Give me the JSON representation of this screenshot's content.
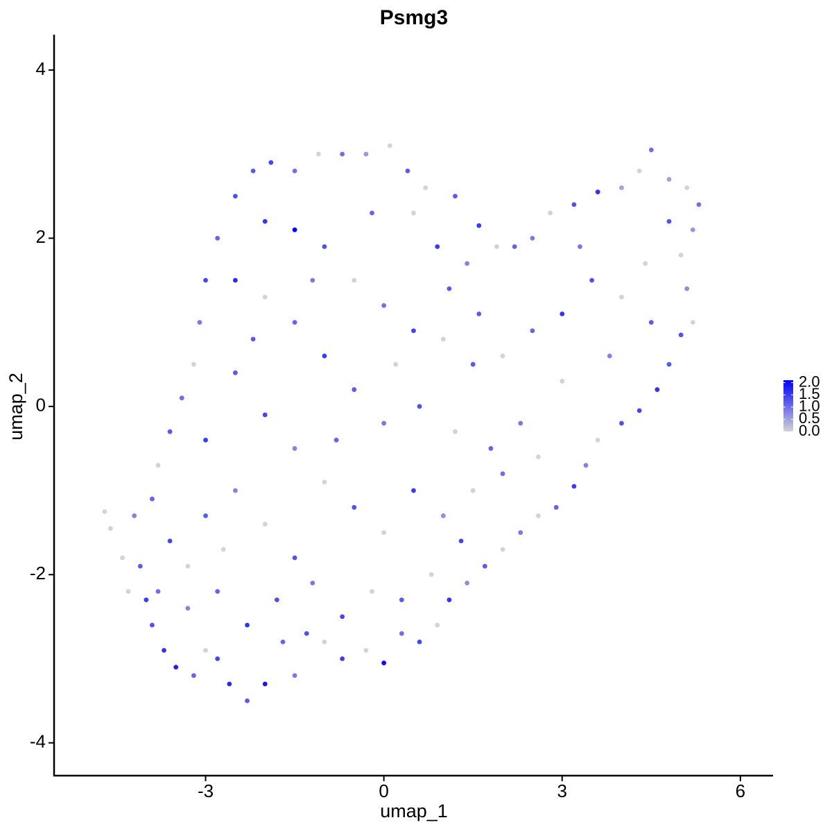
{
  "chart_data": {
    "type": "scatter",
    "title": "Psmg3",
    "xlabel": "umap_1",
    "ylabel": "umap_2",
    "x": [
      -4.7,
      -4.6,
      -4.4,
      -4.1,
      -4.0,
      -3.9,
      -3.7,
      -3.5,
      -3.3,
      -3.2,
      -3.0,
      -2.8,
      -2.6,
      -2.3,
      -2.0,
      -1.5,
      -1.3,
      -1.0,
      -0.7,
      -0.3,
      0.0,
      0.3,
      0.6,
      0.9,
      1.1,
      1.4,
      1.7,
      2.0,
      2.3,
      2.6,
      2.9,
      3.2,
      3.4,
      3.6,
      4.0,
      4.3,
      4.6,
      4.8,
      5.0,
      5.2,
      5.1,
      5.0,
      5.2,
      5.3,
      5.1,
      4.8,
      4.5,
      4.3,
      4.0,
      3.6,
      3.2,
      2.8,
      2.5,
      2.2,
      1.9,
      1.6,
      1.4,
      1.1,
      0.9,
      0.7,
      0.4,
      0.1,
      -0.3,
      -0.7,
      -1.1,
      -1.5,
      -1.9,
      -2.2,
      -2.5,
      -2.8,
      -3.0,
      -3.1,
      -3.2,
      -3.4,
      -3.6,
      -3.8,
      -3.9,
      -4.2,
      -2.0,
      -1.5,
      -1.0,
      -0.5,
      0.0,
      0.5,
      1.0,
      1.5,
      2.0,
      2.5,
      3.0,
      3.5,
      4.0,
      4.5,
      3.8,
      3.0,
      2.3,
      1.8,
      1.2,
      0.6,
      0.0,
      -0.5,
      -1.0,
      -1.5,
      -2.0,
      -2.5,
      -2.5,
      -2.0,
      -1.5,
      -1.0,
      -0.5,
      0.0,
      0.5,
      1.0,
      1.5,
      2.0,
      2.6,
      1.3,
      0.8,
      0.3,
      -0.2,
      -0.7,
      -1.2,
      -1.8,
      -2.3,
      -2.8,
      -3.3,
      -3.6,
      -3.0,
      -2.5,
      -2.0,
      -1.5,
      -3.0,
      -2.2,
      -1.2,
      -0.2,
      0.5,
      1.2,
      -1.7,
      -3.8,
      -2.7,
      4.8,
      4.4,
      3.3,
      0.2,
      -0.8,
      1.6,
      -4.3
    ],
    "values": [
      -1.25,
      -1.45,
      -1.8,
      -1.9,
      -2.3,
      -2.6,
      -2.9,
      -3.1,
      -2.4,
      -3.2,
      -2.9,
      -3.0,
      -3.3,
      -3.5,
      -3.3,
      -3.2,
      -2.7,
      -2.8,
      -3.0,
      -2.9,
      -3.05,
      -2.7,
      -2.8,
      -2.6,
      -2.3,
      -2.1,
      -1.9,
      -1.7,
      -1.5,
      -1.3,
      -1.2,
      -0.95,
      -0.7,
      -0.4,
      -0.2,
      -0.05,
      0.2,
      0.5,
      0.85,
      1.0,
      1.4,
      1.8,
      2.1,
      2.4,
      2.6,
      2.7,
      3.05,
      2.8,
      2.6,
      2.55,
      2.4,
      2.3,
      2.0,
      1.9,
      1.9,
      2.15,
      1.7,
      1.4,
      1.9,
      2.6,
      2.8,
      3.1,
      3.0,
      3.0,
      3.0,
      2.8,
      2.9,
      2.8,
      2.5,
      2.0,
      1.5,
      1.0,
      0.5,
      0.1,
      -0.3,
      -0.7,
      -1.1,
      -1.3,
      2.2,
      2.1,
      1.9,
      1.5,
      1.2,
      0.9,
      0.8,
      0.5,
      0.6,
      0.9,
      1.1,
      1.5,
      1.3,
      1.0,
      0.6,
      0.3,
      -0.2,
      -0.5,
      -0.3,
      0.0,
      -0.2,
      0.2,
      0.6,
      1.0,
      1.3,
      1.5,
      0.4,
      -0.1,
      -0.5,
      -0.9,
      -1.2,
      -1.5,
      -1.0,
      -1.3,
      -1.0,
      -0.8,
      -0.6,
      -1.6,
      -2.0,
      -2.3,
      -2.2,
      -2.5,
      -2.1,
      -2.3,
      -2.6,
      -2.2,
      -1.9,
      -1.6,
      -1.3,
      -1.0,
      -1.4,
      -1.8,
      -0.4,
      0.8,
      1.5,
      2.3,
      2.3,
      2.5,
      -2.8,
      -2.2,
      -1.7,
      2.2,
      1.7,
      1.9,
      0.5,
      -0.4,
      1.1,
      -2.2
    ],
    "expression": [
      0,
      0,
      0,
      1.2,
      1.5,
      1.3,
      1.6,
      1.8,
      0.8,
      1.1,
      0,
      1.4,
      1.7,
      1.2,
      1.9,
      0.9,
      1.3,
      0,
      1.5,
      0,
      2.0,
      1.0,
      1.4,
      0,
      1.6,
      0.7,
      1.2,
      0,
      0.9,
      0,
      1.1,
      1.5,
      0.8,
      0,
      1.3,
      1.4,
      1.6,
      1.2,
      1.3,
      0,
      0.7,
      0,
      0.6,
      1.0,
      0,
      0.5,
      1.0,
      0,
      0.5,
      1.6,
      1.3,
      0,
      0.9,
      1.1,
      0,
      1.5,
      0.8,
      1.2,
      1.5,
      0,
      1.2,
      0,
      0.6,
      1.0,
      0,
      1.0,
      1.4,
      1.2,
      1.3,
      1.1,
      1.4,
      0.9,
      0,
      1.0,
      1.2,
      0,
      1.1,
      0.8,
      1.6,
      2.1,
      1.3,
      0,
      1.0,
      1.4,
      0,
      1.2,
      0,
      1.1,
      1.6,
      1.3,
      0,
      1.2,
      0.8,
      0,
      0.9,
      1.1,
      0,
      1.3,
      0.9,
      1.2,
      1.5,
      1.1,
      0,
      1.7,
      1.2,
      1.4,
      0.8,
      0,
      1.3,
      0,
      1.5,
      0.7,
      0,
      1.0,
      0,
      1.4,
      0,
      1.2,
      0,
      1.4,
      0.9,
      1.3,
      1.6,
      1.1,
      0,
      1.4,
      1.2,
      0.8,
      0,
      1.3,
      1.5,
      1.2,
      0.9,
      1.1,
      0,
      1.2,
      1.1,
      1.0,
      0,
      1.3,
      0,
      0.9,
      0,
      1.1,
      1.2,
      0
    ],
    "xlim": [
      -5.55,
      6.55
    ],
    "ylim": [
      -4.39,
      4.42
    ],
    "xticks": [
      -3,
      0,
      3,
      6
    ],
    "yticks": [
      -4,
      -2,
      0,
      2,
      4
    ],
    "colors": [
      "#d3d3d3",
      "#0000ff"
    ],
    "colorlim": [
      0,
      2.1
    ],
    "colorticks": [
      {
        "value": 0,
        "label": "0.0"
      },
      {
        "value": 0.5,
        "label": "0.5"
      },
      {
        "value": 1,
        "label": "1.0"
      },
      {
        "value": 1.5,
        "label": "1.5"
      },
      {
        "value": 2,
        "label": "2.0"
      }
    ]
  }
}
